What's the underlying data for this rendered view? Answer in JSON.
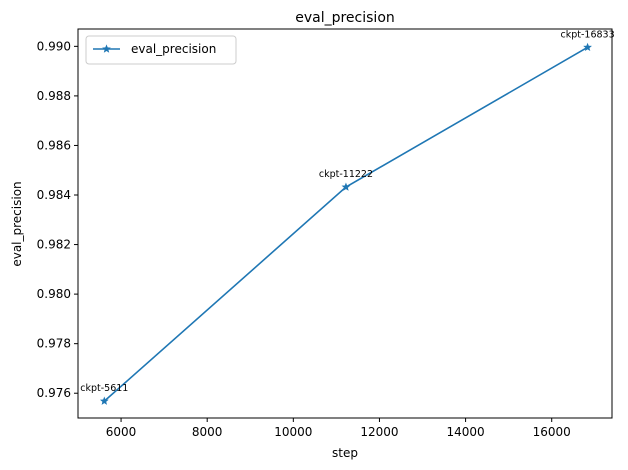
{
  "chart_data": {
    "type": "line",
    "title": "eval_precision",
    "xlabel": "step",
    "ylabel": "eval_precision",
    "xlim": [
      5000,
      17400
    ],
    "ylim": [
      0.975,
      0.9907
    ],
    "xticks": [
      6000,
      8000,
      10000,
      12000,
      14000,
      16000
    ],
    "xtick_labels": [
      "6000",
      "8000",
      "10000",
      "12000",
      "14000",
      "16000"
    ],
    "yticks": [
      0.976,
      0.978,
      0.98,
      0.982,
      0.984,
      0.986,
      0.988,
      0.99
    ],
    "ytick_labels": [
      "0.976",
      "0.978",
      "0.980",
      "0.982",
      "0.984",
      "0.986",
      "0.988",
      "0.990"
    ],
    "grid": false,
    "legend": {
      "placement": "top-left",
      "entries": [
        "eval_precision"
      ]
    },
    "series": [
      {
        "name": "eval_precision",
        "color": "#1f77b4",
        "marker": "star",
        "x": [
          5611,
          11222,
          16833
        ],
        "y": [
          0.97568,
          0.98432,
          0.98996
        ],
        "annotations": [
          "ckpt-5611",
          "ckpt-11222",
          "ckpt-16833"
        ]
      }
    ]
  }
}
